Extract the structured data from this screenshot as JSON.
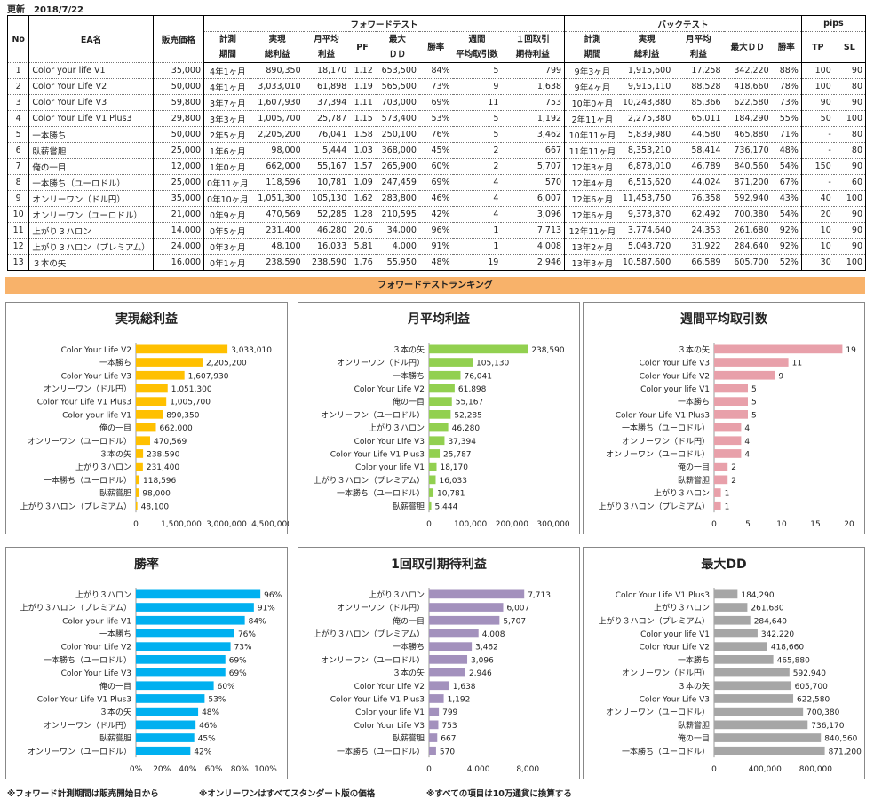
{
  "updated": "更新　2018/7/22",
  "table": {
    "group_headers": {
      "forward": "フォワードテスト",
      "back": "バックテスト",
      "pips": "pips"
    },
    "headers": {
      "no": "No",
      "name": "EA名",
      "price": "販売価格",
      "fw": [
        "計測\n期間",
        "実現\n総利益",
        "月平均\n利益",
        "PF",
        "最大\nＤＤ",
        "勝率",
        "週間\n平均取引数",
        "１回取引\n期待利益"
      ],
      "bt": [
        "計測\n期間",
        "実現\n総利益",
        "月平均\n利益",
        "最大ＤＤ",
        "勝率"
      ],
      "pips": [
        "TP",
        "SL"
      ]
    },
    "rows": [
      [
        "1",
        "Color your life V1",
        "35,000",
        "4年1ヶ月",
        "890,350",
        "18,170",
        "1.12",
        "653,500",
        "84%",
        "5",
        "799",
        "9年3ヶ月",
        "1,915,600",
        "17,258",
        "342,220",
        "88%",
        "100",
        "90"
      ],
      [
        "2",
        "Color Your Life V2",
        "50,000",
        "4年1ヶ月",
        "3,033,010",
        "61,898",
        "1.19",
        "565,500",
        "73%",
        "9",
        "1,638",
        "9年4ヶ月",
        "9,915,110",
        "88,528",
        "418,660",
        "78%",
        "100",
        "80"
      ],
      [
        "3",
        "Color Your Life V3",
        "59,800",
        "3年7ヶ月",
        "1,607,930",
        "37,394",
        "1.11",
        "703,000",
        "69%",
        "11",
        "753",
        "10年0ヶ月",
        "10,243,880",
        "85,366",
        "622,580",
        "73%",
        "90",
        "90"
      ],
      [
        "4",
        "Color Your Life V1 Plus3",
        "29,800",
        "3年3ヶ月",
        "1,005,700",
        "25,787",
        "1.15",
        "573,400",
        "53%",
        "5",
        "1,192",
        "2年11ヶ月",
        "2,275,380",
        "65,011",
        "184,290",
        "55%",
        "50",
        "100"
      ],
      [
        "5",
        "一本勝ち",
        "50,000",
        "2年5ヶ月",
        "2,205,200",
        "76,041",
        "1.58",
        "250,100",
        "76%",
        "5",
        "3,462",
        "10年11ヶ月",
        "5,839,980",
        "44,580",
        "465,880",
        "71%",
        "-",
        "80"
      ],
      [
        "6",
        "臥薪嘗胆",
        "25,000",
        "1年6ヶ月",
        "98,000",
        "5,444",
        "1.03",
        "368,000",
        "45%",
        "2",
        "667",
        "11年11ヶ月",
        "8,353,210",
        "58,414",
        "736,170",
        "48%",
        "-",
        "80"
      ],
      [
        "7",
        "俺の一目",
        "12,000",
        "1年0ヶ月",
        "662,000",
        "55,167",
        "1.57",
        "265,900",
        "60%",
        "2",
        "5,707",
        "12年3ヶ月",
        "6,878,010",
        "46,789",
        "840,560",
        "54%",
        "150",
        "90"
      ],
      [
        "8",
        "一本勝ち（ユーロドル）",
        "25,000",
        "0年11ヶ月",
        "118,596",
        "10,781",
        "1.09",
        "247,459",
        "69%",
        "4",
        "570",
        "12年4ヶ月",
        "6,515,620",
        "44,024",
        "871,200",
        "67%",
        "-",
        "60"
      ],
      [
        "9",
        "オンリーワン（ドル円）",
        "35,000",
        "0年10ヶ月",
        "1,051,300",
        "105,130",
        "1.62",
        "283,800",
        "46%",
        "4",
        "6,007",
        "12年6ヶ月",
        "11,453,750",
        "76,358",
        "592,940",
        "43%",
        "40",
        "100"
      ],
      [
        "10",
        "オンリーワン（ユーロドル）",
        "21,000",
        "0年9ヶ月",
        "470,569",
        "52,285",
        "1.28",
        "210,595",
        "42%",
        "4",
        "3,096",
        "12年6ヶ月",
        "9,373,870",
        "62,492",
        "700,380",
        "54%",
        "20",
        "90"
      ],
      [
        "11",
        "上がり３ハロン",
        "14,000",
        "0年5ヶ月",
        "231,400",
        "46,280",
        "20.6",
        "34,000",
        "96%",
        "1",
        "7,713",
        "12年11ヶ月",
        "3,774,640",
        "24,353",
        "261,680",
        "92%",
        "10",
        "90"
      ],
      [
        "12",
        "上がり３ハロン（プレミアム）",
        "24,000",
        "0年3ヶ月",
        "48,100",
        "16,033",
        "5.81",
        "4,000",
        "91%",
        "1",
        "4,008",
        "13年2ヶ月",
        "5,043,720",
        "31,922",
        "284,640",
        "92%",
        "10",
        "90"
      ],
      [
        "13",
        "３本の矢",
        "16,000",
        "0年1ヶ月",
        "238,590",
        "238,590",
        "1.76",
        "55,950",
        "48%",
        "19",
        "2,946",
        "13年3ヶ月",
        "10,587,600",
        "66,589",
        "605,700",
        "52%",
        "30",
        "100"
      ]
    ]
  },
  "banner": "フォワードテストランキング",
  "colors": {
    "bar1": "#FFC000",
    "bar2": "#92D050",
    "bar3": "#E8A0AA",
    "bar4": "#00B0F0",
    "bar5": "#A391BD",
    "bar6": "#A6A6A6",
    "banner": "#F8B26A"
  },
  "chart_data": [
    {
      "type": "bar",
      "title": "実現総利益",
      "xlim": [
        0,
        4500000
      ],
      "ticks": [
        "0",
        "1,500,000",
        "3,000,000",
        "4,500,000"
      ],
      "tick_values": [
        0,
        1500000,
        3000000,
        4500000
      ],
      "categories": [
        "Color Your Life V2",
        "一本勝ち",
        "Color Your Life V3",
        "オンリーワン（ドル円）",
        "Color Your Life V1 Plus3",
        "Color your life V1",
        "俺の一目",
        "オンリーワン（ユーロドル）",
        "３本の矢",
        "上がり３ハロン",
        "一本勝ち（ユーロドル）",
        "臥薪嘗胆",
        "上がり３ハロン（プレミアム）"
      ],
      "values": [
        3033010,
        2205200,
        1607930,
        1051300,
        1005700,
        890350,
        662000,
        470569,
        238590,
        231400,
        118596,
        98000,
        48100
      ],
      "labels": [
        "3,033,010",
        "2,205,200",
        "1,607,930",
        "1,051,300",
        "1,005,700",
        "890,350",
        "662,000",
        "470,569",
        "238,590",
        "231,400",
        "118,596",
        "98,000",
        "48,100"
      ]
    },
    {
      "type": "bar",
      "title": "月平均利益",
      "xlim": [
        0,
        300000
      ],
      "ticks": [
        "0",
        "100,000",
        "200,000",
        "300,000"
      ],
      "tick_values": [
        0,
        100000,
        200000,
        300000
      ],
      "categories": [
        "３本の矢",
        "オンリーワン（ドル円）",
        "一本勝ち",
        "Color Your Life V2",
        "俺の一目",
        "オンリーワン（ユーロドル）",
        "上がり３ハロン",
        "Color Your Life V3",
        "Color Your Life V1 Plus3",
        "Color your life V1",
        "上がり３ハロン（プレミアム）",
        "一本勝ち（ユーロドル）",
        "臥薪嘗胆"
      ],
      "values": [
        238590,
        105130,
        76041,
        61898,
        55167,
        52285,
        46280,
        37394,
        25787,
        18170,
        16033,
        10781,
        5444
      ],
      "labels": [
        "238,590",
        "105,130",
        "76,041",
        "61,898",
        "55,167",
        "52,285",
        "46,280",
        "37,394",
        "25,787",
        "18,170",
        "16,033",
        "10,781",
        "5,444"
      ]
    },
    {
      "type": "bar",
      "title": "週間平均取引数",
      "xlim": [
        0,
        20
      ],
      "ticks": [
        "0",
        "5",
        "10",
        "15",
        "20"
      ],
      "tick_values": [
        0,
        5,
        10,
        15,
        20
      ],
      "categories": [
        "３本の矢",
        "Color Your Life V3",
        "Color Your Life V2",
        "Color your life V1",
        "一本勝ち",
        "Color Your Life V1 Plus3",
        "一本勝ち（ユーロドル）",
        "オンリーワン（ドル円）",
        "オンリーワン（ユーロドル）",
        "俺の一目",
        "臥薪嘗胆",
        "上がり３ハロン",
        "上がり３ハロン（プレミアム）"
      ],
      "values": [
        19,
        11,
        9,
        5,
        5,
        5,
        4,
        4,
        4,
        2,
        2,
        1,
        1
      ],
      "labels": [
        "19",
        "11",
        "9",
        "5",
        "5",
        "5",
        "4",
        "4",
        "4",
        "2",
        "2",
        "1",
        "1"
      ]
    },
    {
      "type": "bar",
      "title": "勝率",
      "xlim": [
        0,
        100
      ],
      "ticks": [
        "0%",
        "20%",
        "40%",
        "60%",
        "80%",
        "100%"
      ],
      "tick_values": [
        0,
        20,
        40,
        60,
        80,
        100
      ],
      "categories": [
        "上がり３ハロン",
        "上がり３ハロン（プレミアム）",
        "Color your life V1",
        "一本勝ち",
        "Color Your Life V2",
        "一本勝ち（ユーロドル）",
        "Color Your Life V3",
        "俺の一目",
        "Color Your Life V1 Plus3",
        "３本の矢",
        "オンリーワン（ドル円）",
        "臥薪嘗胆",
        "オンリーワン（ユーロドル）"
      ],
      "values": [
        96,
        91,
        84,
        76,
        73,
        69,
        69,
        60,
        53,
        48,
        46,
        45,
        42
      ],
      "labels": [
        "96%",
        "91%",
        "84%",
        "76%",
        "73%",
        "69%",
        "69%",
        "60%",
        "53%",
        "48%",
        "46%",
        "45%",
        "42%"
      ]
    },
    {
      "type": "bar",
      "title": "1回取引期待利益",
      "xlim": [
        0,
        10000
      ],
      "ticks": [
        "0",
        "4,000",
        "8,000"
      ],
      "tick_values": [
        0,
        4000,
        8000
      ],
      "categories": [
        "上がり３ハロン",
        "オンリーワン（ドル円）",
        "俺の一目",
        "上がり３ハロン（プレミアム）",
        "一本勝ち",
        "オンリーワン（ユーロドル）",
        "３本の矢",
        "Color Your Life V2",
        "Color Your Life V1 Plus3",
        "Color your life V1",
        "Color Your Life V3",
        "臥薪嘗胆",
        "一本勝ち（ユーロドル）"
      ],
      "values": [
        7713,
        6007,
        5707,
        4008,
        3462,
        3096,
        2946,
        1638,
        1192,
        799,
        753,
        667,
        570
      ],
      "labels": [
        "7,713",
        "6,007",
        "5,707",
        "4,008",
        "3,462",
        "3,096",
        "2,946",
        "1,638",
        "1,192",
        "799",
        "753",
        "667",
        "570"
      ]
    },
    {
      "type": "bar",
      "title": "最大DD",
      "xlim": [
        0,
        1000000
      ],
      "ticks": [
        "0",
        "400,000",
        "800,000"
      ],
      "tick_values": [
        0,
        400000,
        800000
      ],
      "categories": [
        "Color Your Life V1 Plus3",
        "上がり３ハロン",
        "上がり３ハロン（プレミアム）",
        "Color your life V1",
        "Color Your Life V2",
        "一本勝ち",
        "オンリーワン（ドル円）",
        "３本の矢",
        "Color Your Life V3",
        "オンリーワン（ユーロドル）",
        "臥薪嘗胆",
        "俺の一目",
        "一本勝ち（ユーロドル）"
      ],
      "values": [
        184290,
        261680,
        284640,
        342220,
        418660,
        465880,
        592940,
        605700,
        622580,
        700380,
        736170,
        840560,
        871200
      ],
      "labels": [
        "184,290",
        "261,680",
        "284,640",
        "342,220",
        "418,660",
        "465,880",
        "592,940",
        "605,700",
        "622,580",
        "700,380",
        "736,170",
        "840,560",
        "871,200"
      ]
    }
  ],
  "footer": [
    "※フォワード計測期間は販売開始日から",
    "※オンリーワンはすべてスタンダート版の価格",
    "※すべての項目は10万通貨に換算する"
  ]
}
